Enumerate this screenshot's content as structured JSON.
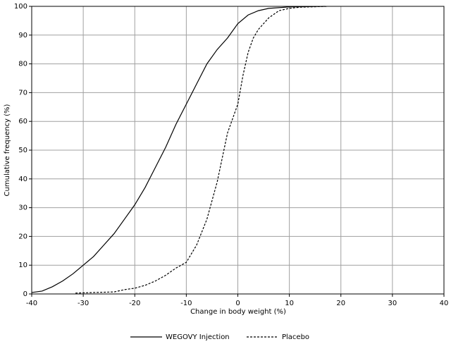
{
  "chart_data": {
    "type": "line",
    "x_label": "Change in body weight (%)",
    "y_label": "Cumulative frequency (%)",
    "xlim": [
      -40,
      40
    ],
    "xticks": [
      -40,
      -30,
      -20,
      -10,
      0,
      10,
      20,
      30,
      40
    ],
    "ylim": [
      0,
      100
    ],
    "yticks": [
      0,
      10,
      20,
      30,
      40,
      50,
      60,
      70,
      80,
      90,
      100
    ],
    "grid": true,
    "legend": "bottom",
    "series": [
      {
        "name": "WEGOVY Injection",
        "color": "#000000",
        "line_style": "solid",
        "x": [
          -40,
          -38,
          -36,
          -34,
          -32,
          -30,
          -28,
          -26,
          -24,
          -22,
          -20,
          -18,
          -16,
          -14,
          -12,
          -10,
          -8,
          -6,
          -4,
          -2,
          0,
          2,
          4,
          6,
          10,
          17
        ],
        "values": [
          0.5,
          1,
          2.5,
          4.5,
          7,
          10,
          13,
          17,
          21,
          26,
          31,
          37,
          44,
          51,
          59,
          66,
          73,
          80,
          85,
          89,
          94,
          97,
          98.5,
          99.3,
          99.8,
          100
        ]
      },
      {
        "name": "Placebo",
        "color": "#000000",
        "line_style": "dashed",
        "x": [
          -31.5,
          -28,
          -24,
          -22,
          -20,
          -18,
          -16,
          -14,
          -12,
          -10,
          -8,
          -6,
          -4,
          -2,
          0,
          1,
          2,
          3,
          4,
          6,
          8,
          10,
          12,
          17.5
        ],
        "values": [
          0.3,
          0.5,
          0.7,
          1.5,
          2,
          3,
          4.5,
          6.5,
          9,
          11,
          17,
          26,
          39,
          56,
          66,
          76,
          84,
          89,
          92,
          96,
          98.5,
          99.3,
          99.7,
          100
        ]
      }
    ]
  }
}
